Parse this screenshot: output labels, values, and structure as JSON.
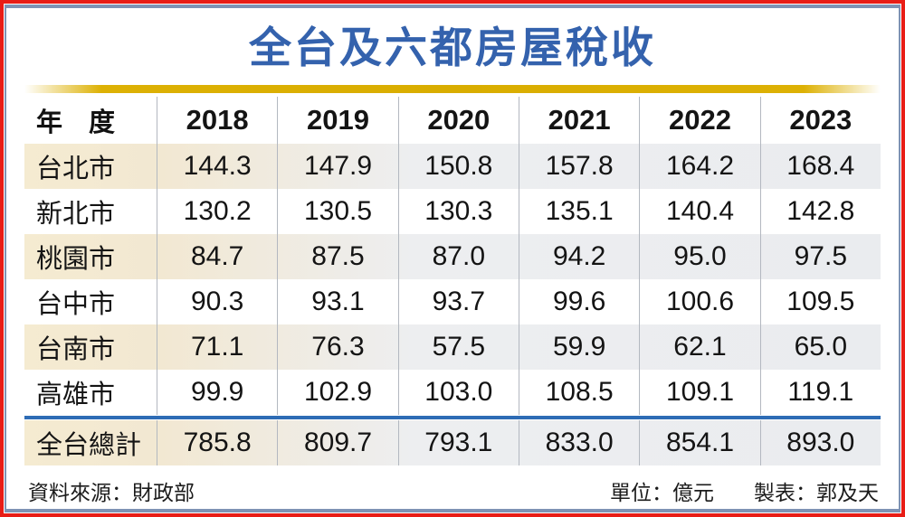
{
  "title": "全台及六都房屋稅收",
  "table": {
    "header": {
      "label": "年　度",
      "years": [
        "2018",
        "2019",
        "2020",
        "2021",
        "2022",
        "2023"
      ]
    },
    "rows": [
      {
        "key": "taipei",
        "label": "台北市",
        "values": [
          "144.3",
          "147.9",
          "150.8",
          "157.8",
          "164.2",
          "168.4"
        ]
      },
      {
        "key": "new-taipei",
        "label": "新北市",
        "values": [
          "130.2",
          "130.5",
          "130.3",
          "135.1",
          "140.4",
          "142.8"
        ]
      },
      {
        "key": "taoyuan",
        "label": "桃園市",
        "values": [
          "84.7",
          "87.5",
          "87.0",
          "94.2",
          "95.0",
          "97.5"
        ]
      },
      {
        "key": "taichung",
        "label": "台中市",
        "values": [
          "90.3",
          "93.1",
          "93.7",
          "99.6",
          "100.6",
          "109.5"
        ]
      },
      {
        "key": "tainan",
        "label": "台南市",
        "values": [
          "71.1",
          "76.3",
          "57.5",
          "59.9",
          "62.1",
          "65.0"
        ]
      },
      {
        "key": "kaohsiung",
        "label": "高雄市",
        "values": [
          "99.9",
          "102.9",
          "103.0",
          "108.5",
          "109.1",
          "119.1"
        ]
      }
    ],
    "total": {
      "key": "taiwan-total",
      "label": "全台總計",
      "values": [
        "785.8",
        "809.7",
        "793.1",
        "833.0",
        "854.1",
        "893.0"
      ]
    }
  },
  "footer": {
    "source": "資料來源：財政部",
    "unit": "單位：億元",
    "credit": "製表：郭及天"
  },
  "colors": {
    "outer_border_red": "#e81d16",
    "inner_border_slate": "#7e93b4",
    "title_blue": "#3462ad",
    "gold_bar": "#d9ad00",
    "total_divider_blue": "#2e6cb5",
    "shaded_row_cream": "#f5ebd1",
    "shaded_row_gray": "#eaecef",
    "column_separator": "#b3b8c0",
    "text": "#141414"
  },
  "chart_data": {
    "type": "table",
    "title": "全台及六都房屋稅收",
    "categories": [
      "2018",
      "2019",
      "2020",
      "2021",
      "2022",
      "2023"
    ],
    "series": [
      {
        "name": "台北市",
        "values": [
          144.3,
          147.9,
          150.8,
          157.8,
          164.2,
          168.4
        ]
      },
      {
        "name": "新北市",
        "values": [
          130.2,
          130.5,
          130.3,
          135.1,
          140.4,
          142.8
        ]
      },
      {
        "name": "桃園市",
        "values": [
          84.7,
          87.5,
          87.0,
          94.2,
          95.0,
          97.5
        ]
      },
      {
        "name": "台中市",
        "values": [
          90.3,
          93.1,
          93.7,
          99.6,
          100.6,
          109.5
        ]
      },
      {
        "name": "台南市",
        "values": [
          71.1,
          76.3,
          57.5,
          59.9,
          62.1,
          65.0
        ]
      },
      {
        "name": "高雄市",
        "values": [
          99.9,
          102.9,
          103.0,
          108.5,
          109.1,
          119.1
        ]
      },
      {
        "name": "全台總計",
        "values": [
          785.8,
          809.7,
          793.1,
          833.0,
          854.1,
          893.0
        ]
      }
    ],
    "row_axis_label": "年度",
    "unit": "億元",
    "source": "財政部",
    "credit": "郭及天"
  }
}
